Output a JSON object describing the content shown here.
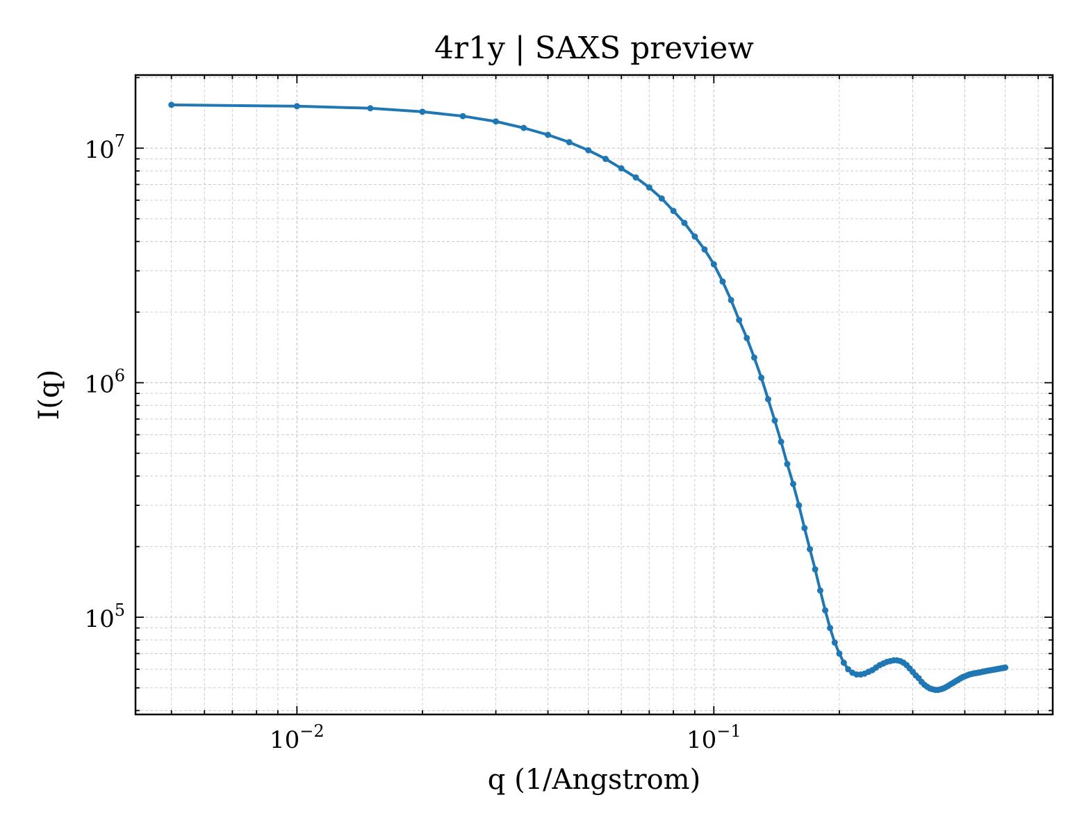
{
  "chart_data": {
    "type": "line",
    "title": "4r1y | SAXS preview",
    "xlabel": "q (1/Angstrom)",
    "ylabel": "I(q)",
    "xscale": "log",
    "yscale": "log",
    "xlim": [
      0.0041,
      0.65
    ],
    "ylim": [
      38500,
      20500000
    ],
    "grid": true,
    "color": "#1f77b4",
    "xticks": [
      {
        "value": 0.01,
        "base": "10",
        "exp": "−2"
      },
      {
        "value": 0.1,
        "base": "10",
        "exp": "−1"
      }
    ],
    "yticks": [
      {
        "value": 100000,
        "base": "10",
        "exp": "5"
      },
      {
        "value": 1000000,
        "base": "10",
        "exp": "6"
      },
      {
        "value": 10000000,
        "base": "10",
        "exp": "7"
      }
    ],
    "series": [
      {
        "x": [
          0.005,
          0.01,
          0.015,
          0.02,
          0.025,
          0.03,
          0.035,
          0.04,
          0.045,
          0.05,
          0.055,
          0.06,
          0.065,
          0.07,
          0.075,
          0.08,
          0.085,
          0.09,
          0.095,
          0.1,
          0.105,
          0.11,
          0.115,
          0.12,
          0.125,
          0.13,
          0.135,
          0.14,
          0.145,
          0.15,
          0.155,
          0.16,
          0.165,
          0.17,
          0.175,
          0.18,
          0.185,
          0.19,
          0.195,
          0.2,
          0.205,
          0.21,
          0.215,
          0.22,
          0.225,
          0.23,
          0.235,
          0.24,
          0.245,
          0.25,
          0.255,
          0.26,
          0.265,
          0.27,
          0.275,
          0.28,
          0.285,
          0.29,
          0.295,
          0.3,
          0.305,
          0.31,
          0.315,
          0.32,
          0.325,
          0.33,
          0.335,
          0.34,
          0.345,
          0.35,
          0.355,
          0.36,
          0.365,
          0.37,
          0.375,
          0.38,
          0.385,
          0.39,
          0.395,
          0.4,
          0.405,
          0.41,
          0.415,
          0.42,
          0.425,
          0.43,
          0.435,
          0.44,
          0.445,
          0.45,
          0.455,
          0.46,
          0.465,
          0.47,
          0.475,
          0.48,
          0.485,
          0.49,
          0.495,
          0.5
        ],
        "y": [
          15300000,
          15100000,
          14800000,
          14300000,
          13700000,
          13000000,
          12200000,
          11400000,
          10600000,
          9800000,
          9000000,
          8200000,
          7500000,
          6800000,
          6100000,
          5400000,
          4800000,
          4200000,
          3700000,
          3200000,
          2700000,
          2250000,
          1850000,
          1550000,
          1280000,
          1050000,
          850000,
          690000,
          560000,
          450000,
          370000,
          300000,
          240000,
          195000,
          160000,
          130000,
          107000,
          90000,
          78000,
          70000,
          64000,
          60000,
          58000,
          57000,
          57000,
          57500,
          58500,
          59500,
          61000,
          62500,
          63500,
          64500,
          65000,
          65500,
          65500,
          65000,
          64000,
          62500,
          60500,
          58500,
          56500,
          55000,
          53000,
          51500,
          50500,
          49700,
          49300,
          49000,
          49000,
          49300,
          49700,
          50300,
          51000,
          51800,
          52500,
          53300,
          54000,
          54800,
          55500,
          56000,
          56500,
          57000,
          57300,
          57600,
          57800,
          58000,
          58200,
          58500,
          58700,
          59000,
          59200,
          59400,
          59600,
          59800,
          60000,
          60200,
          60400,
          60600,
          60800,
          61000
        ]
      }
    ]
  }
}
